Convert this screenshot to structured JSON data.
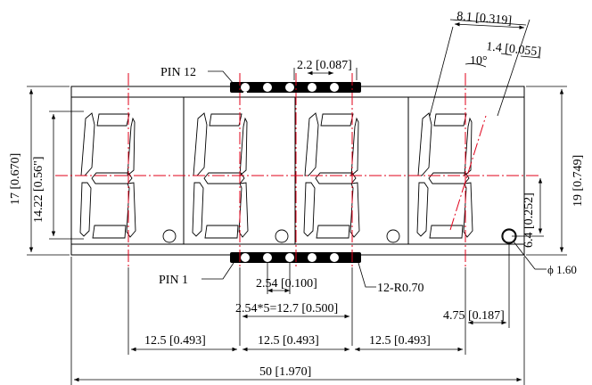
{
  "drawing": {
    "labels": {
      "pin12": "PIN 12",
      "pin1": "PIN 1",
      "pad_width": "2.2 [0.087]",
      "digit_angle_span": "8.1 [0.319]",
      "segment_width": "1.4 [0.055]",
      "slant_angle": "10°",
      "body_height": "17 [0.670]",
      "digit_height": "14.22 [0.56\"]",
      "overall_height": "19 [0.749]",
      "dp_offset": "6.4 [0.252]",
      "dp_diameter": "ϕ 1.60",
      "pin_pitch": "2.54 [0.100]",
      "pin_span": "2.54*5=12.7 [0.500]",
      "pin_radius": "12-R0.70",
      "dp_spacing": "4.75 [0.187]",
      "digit_pitch_left": "12.5 [0.493]",
      "digit_pitch_mid": "12.5 [0.493]",
      "digit_pitch_right": "12.5 [0.493]",
      "overall_width": "50 [1.970]"
    },
    "colors": {
      "outline": "#000000",
      "centerline": "#e0001a"
    }
  }
}
